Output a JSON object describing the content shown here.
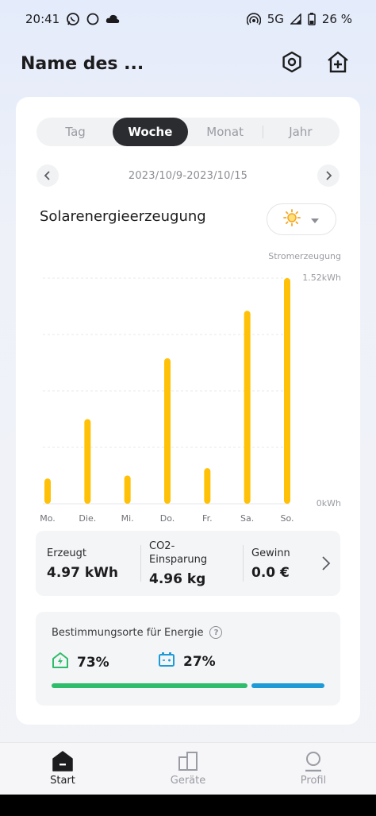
{
  "status_bar": {
    "time": "20:41",
    "network": "5G",
    "battery": "26 %",
    "icons": [
      "whatsapp-icon",
      "circle-icon",
      "cloud-icon",
      "hotspot-icon",
      "signal-icon",
      "battery-icon"
    ]
  },
  "header": {
    "title": "Name des ...",
    "icons": [
      "settings-hexagon-icon",
      "add-home-icon"
    ]
  },
  "period_tabs": [
    {
      "label": "Tag",
      "active": false
    },
    {
      "label": "Woche",
      "active": true
    },
    {
      "label": "Monat",
      "active": false
    },
    {
      "label": "Jahr",
      "active": false
    }
  ],
  "date_range": "2023/10/9-2023/10/15",
  "chart_section": {
    "title": "Solarenergieerzeugung",
    "weather_icon": "sun-icon"
  },
  "chart_data": {
    "type": "bar",
    "categories": [
      "Mo.",
      "Die.",
      "Mi.",
      "Do.",
      "Fr.",
      "Sa.",
      "So."
    ],
    "values": [
      0.17,
      0.57,
      0.19,
      0.98,
      0.24,
      1.3,
      1.52
    ],
    "ylabel": "Stromerzeugung",
    "ymax_label": "1.52kWh",
    "ymin_label": "0kWh",
    "ylim": [
      0,
      1.52
    ],
    "bar_color": "#ffc107",
    "grid": true
  },
  "stats": [
    {
      "label": "Erzeugt",
      "value": "4.97 kWh"
    },
    {
      "label": "CO2-\nEinsparung",
      "value": "4.96 kg"
    },
    {
      "label": "Gewinn",
      "value": "0.0 €"
    }
  ],
  "destinations": {
    "title": "Bestimmungsorte für Energie",
    "home_percent": "73%",
    "battery_percent": "27%",
    "home_fraction": 0.73,
    "battery_fraction": 0.27,
    "home_color": "#2ebd6b",
    "battery_color": "#1e9bd7"
  },
  "tabbar": [
    {
      "label": "Start",
      "icon": "home-icon",
      "active": true
    },
    {
      "label": "Geräte",
      "icon": "devices-icon",
      "active": false
    },
    {
      "label": "Profil",
      "icon": "profile-icon",
      "active": false
    }
  ]
}
